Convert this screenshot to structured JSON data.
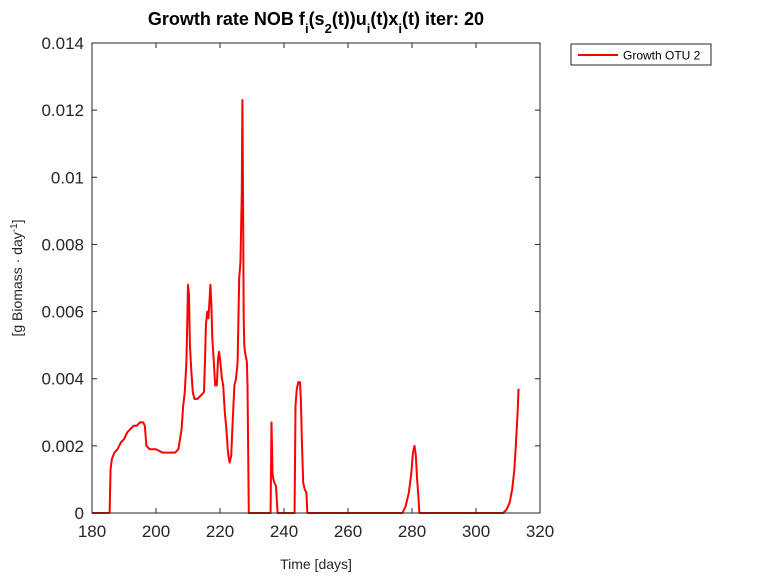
{
  "chart_data": {
    "type": "line",
    "title": {
      "parts": [
        {
          "text": "Growth rate NOB f",
          "shift": "base"
        },
        {
          "text": "i",
          "shift": "sub"
        },
        {
          "text": "(s",
          "shift": "base"
        },
        {
          "text": "2",
          "shift": "sub"
        },
        {
          "text": "(t))u",
          "shift": "base"
        },
        {
          "text": "i",
          "shift": "sub"
        },
        {
          "text": "(t)x",
          "shift": "base"
        },
        {
          "text": "i",
          "shift": "sub"
        },
        {
          "text": "(t) iter: 20",
          "shift": "base"
        }
      ]
    },
    "xlabel": "Time [days]",
    "ylabel": {
      "parts": [
        {
          "text": "[g Biomass · day",
          "shift": "base"
        },
        {
          "text": "-1",
          "shift": "sup"
        },
        {
          "text": "]",
          "shift": "base"
        }
      ]
    },
    "xlim": [
      180,
      320
    ],
    "ylim": [
      0,
      0.014
    ],
    "xticks": [
      180,
      200,
      220,
      240,
      260,
      280,
      300,
      320
    ],
    "xtick_labels": [
      "180",
      "200",
      "220",
      "240",
      "260",
      "280",
      "300",
      "320"
    ],
    "yticks": [
      0,
      0.002,
      0.004,
      0.006,
      0.008,
      0.01,
      0.012,
      0.014
    ],
    "ytick_labels": [
      "0",
      "0.002",
      "0.004",
      "0.006",
      "0.008",
      "0.01",
      "0.012",
      "0.014"
    ],
    "grid": false,
    "legend": {
      "location": "outside-top-right"
    },
    "series": [
      {
        "name": "Growth OTU 2",
        "color": "#ff0000",
        "x": [
          180,
          185.5,
          185.8,
          186.2,
          187,
          188,
          189,
          190,
          191,
          192,
          193,
          194,
          195,
          196,
          196.5,
          197,
          198,
          200,
          202,
          204,
          206,
          207,
          208,
          208.5,
          209,
          209.5,
          209.8,
          210,
          210.3,
          210.6,
          211,
          211.5,
          212,
          213,
          214,
          215,
          215.3,
          215.6,
          216,
          216.4,
          216.7,
          217,
          217.3,
          217.6,
          218,
          218.5,
          219,
          219.4,
          219.7,
          220,
          220.3,
          220.6,
          221,
          221.5,
          222,
          222.5,
          223,
          223.5,
          224,
          224.5,
          225,
          225.5,
          226,
          226.4,
          226.8,
          227,
          227.2,
          227.4,
          227.6,
          227.8,
          228,
          228.2,
          228.4,
          228.6,
          229,
          235.5,
          235.8,
          236.1,
          236.4,
          236.7,
          237,
          237.5,
          238,
          238.3,
          238.6,
          243.3,
          243.6,
          244,
          244.5,
          245,
          245.3,
          245.6,
          246,
          246.5,
          247,
          247.3,
          277,
          278,
          279,
          279.8,
          280.3,
          280.8,
          281.2,
          281.6,
          282,
          282.3,
          308.5,
          309.5,
          310.5,
          311.3,
          312,
          312.5,
          313,
          313.3
        ],
        "y": [
          0,
          0,
          0.0013,
          0.0016,
          0.0018,
          0.0019,
          0.0021,
          0.0022,
          0.0024,
          0.0025,
          0.0026,
          0.0026,
          0.0027,
          0.0027,
          0.0026,
          0.002,
          0.0019,
          0.0019,
          0.0018,
          0.0018,
          0.0018,
          0.0019,
          0.0025,
          0.0032,
          0.0036,
          0.0045,
          0.0058,
          0.0068,
          0.0065,
          0.005,
          0.0043,
          0.0036,
          0.0034,
          0.0034,
          0.0035,
          0.0036,
          0.0045,
          0.0056,
          0.006,
          0.0058,
          0.0063,
          0.0068,
          0.0062,
          0.0052,
          0.0046,
          0.0038,
          0.0038,
          0.0046,
          0.0048,
          0.0046,
          0.0043,
          0.004,
          0.0038,
          0.003,
          0.0025,
          0.0018,
          0.0015,
          0.0017,
          0.0028,
          0.0038,
          0.004,
          0.0045,
          0.007,
          0.0075,
          0.0095,
          0.0123,
          0.0095,
          0.0058,
          0.005,
          0.0048,
          0.0047,
          0.0046,
          0.0045,
          0.0038,
          0,
          0,
          0,
          0.0027,
          0.0012,
          0.001,
          0.0009,
          0.0008,
          0,
          0,
          0,
          0,
          0.0032,
          0.0037,
          0.0039,
          0.0039,
          0.0033,
          0.0021,
          0.0009,
          0.0007,
          0.0006,
          0,
          0,
          0.0002,
          0.0006,
          0.0012,
          0.0018,
          0.002,
          0.0017,
          0.001,
          0.0005,
          0,
          0,
          0.0001,
          0.0003,
          0.0007,
          0.0013,
          0.0021,
          0.003,
          0.0037
        ]
      }
    ]
  }
}
